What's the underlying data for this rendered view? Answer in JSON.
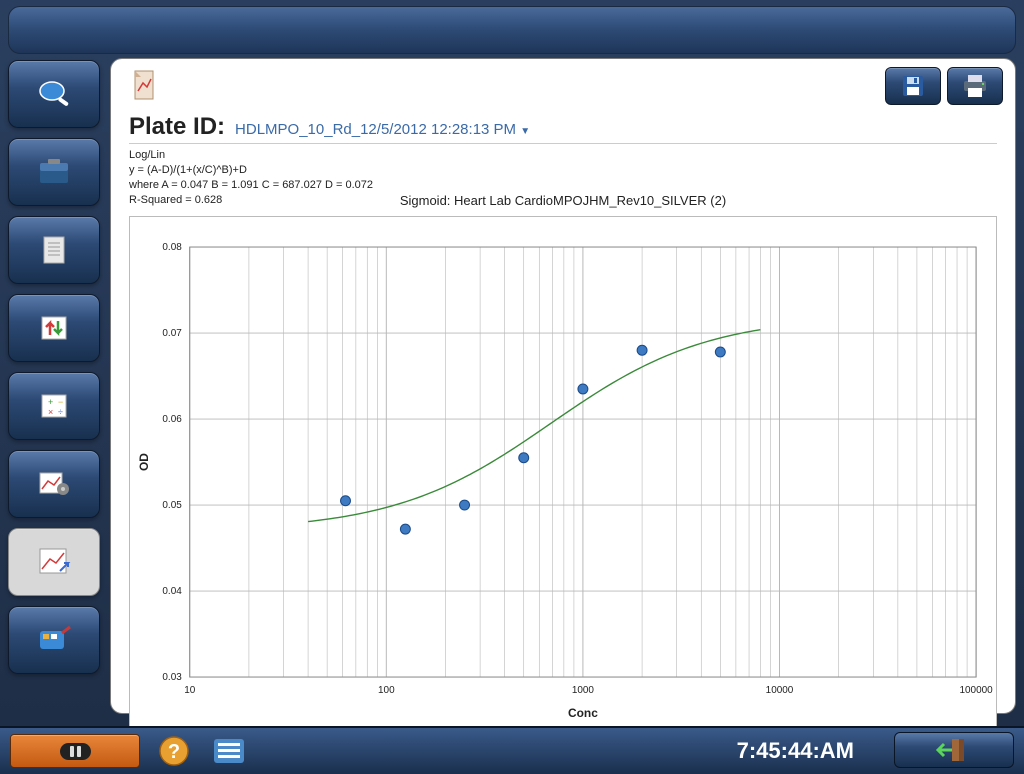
{
  "plate": {
    "label": "Plate ID:",
    "value": "HDLMPO_10_Rd_12/5/2012 12:28:13 PM"
  },
  "formula": {
    "line1": "Log/Lin",
    "line2": "y = (A-D)/(1+(x/C)^B)+D",
    "line3": " where  A = 0.047 B = 1.091 C = 687.027 D = 0.072",
    "line4": "R-Squared = 0.628"
  },
  "chart": {
    "title": "Sigmoid: Heart Lab CardioMPOJHM_Rev10_SILVER (2)",
    "type": "scatter-logx-with-sigmoid-fit",
    "xlabel": "Conc",
    "ylabel": "OD",
    "x_scale": "log",
    "y_scale": "linear",
    "xlim": [
      10,
      100000
    ],
    "ylim": [
      0.03,
      0.08
    ],
    "xticks": [
      10,
      100,
      1000,
      10000,
      100000
    ],
    "yticks": [
      0.03,
      0.04,
      0.05,
      0.06,
      0.07,
      0.08
    ],
    "label_fontsize": 12,
    "tick_fontsize": 10,
    "background_color": "#ffffff",
    "grid_color": "#b8b8b8",
    "border_color": "#bbbbbb",
    "points": [
      {
        "x": 62,
        "y": 0.0505
      },
      {
        "x": 125,
        "y": 0.0472
      },
      {
        "x": 250,
        "y": 0.05
      },
      {
        "x": 500,
        "y": 0.0555
      },
      {
        "x": 1000,
        "y": 0.0635
      },
      {
        "x": 2000,
        "y": 0.068
      },
      {
        "x": 5000,
        "y": 0.0678
      }
    ],
    "marker": {
      "radius": 5,
      "fill": "#3d7ac2",
      "stroke": "#1a4a88"
    },
    "curve": {
      "A": 0.047,
      "B": 1.091,
      "C": 687.027,
      "D": 0.072,
      "color": "#3a8a3a",
      "width": 1.4,
      "x_start": 40,
      "x_end": 8000
    }
  },
  "clock": "7:45:44:AM",
  "sidebar_icons": [
    "search",
    "toolbox",
    "document",
    "arrows",
    "calculator",
    "chart-gear",
    "chart-arrow",
    "palette"
  ],
  "top_buttons": [
    "save",
    "print"
  ]
}
